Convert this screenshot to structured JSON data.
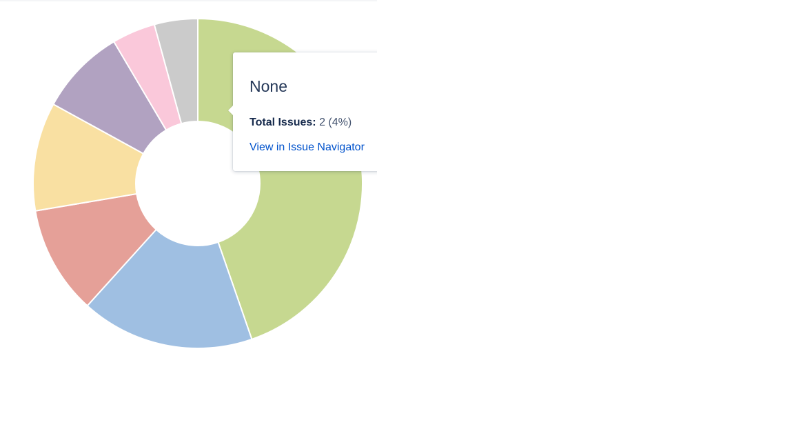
{
  "chart_data": {
    "type": "pie",
    "donut": true,
    "slices": [
      {
        "value": 21,
        "color": "#c6d890"
      },
      {
        "value": 8,
        "color": "#9fbfe2"
      },
      {
        "value": 5,
        "color": "#e5a098"
      },
      {
        "value": 5,
        "color": "#f9e0a2"
      },
      {
        "value": 4,
        "color": "#b1a2c1"
      },
      {
        "value": 2,
        "color": "#fac8da"
      },
      {
        "value": 2,
        "color": "#cbcbcb"
      }
    ],
    "start_angle_deg": 0,
    "direction": "clockwise"
  },
  "tooltip": {
    "title": "None",
    "total_label": "Total Issues:",
    "total_value": "2 (4%)",
    "link_text": "View in Issue Navigator"
  }
}
